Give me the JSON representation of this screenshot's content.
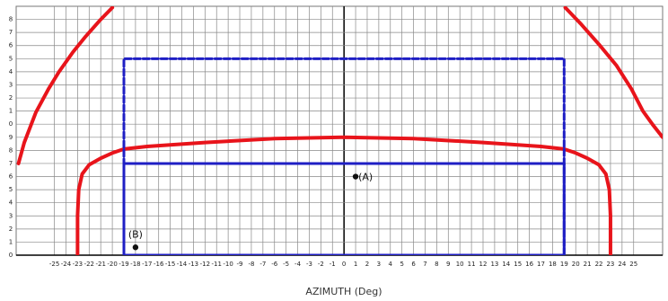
{
  "chart_data": {
    "type": "line",
    "x_label": "AZIMUTH (Deg)",
    "xlim": [
      -28.3,
      27.5
    ],
    "ylim": [
      0,
      19
    ],
    "xticks": [
      -25,
      -24,
      -23,
      -22,
      -21,
      -20,
      -19,
      -18,
      -17,
      -16,
      -15,
      -14,
      -13,
      -12,
      -11,
      -10,
      -9,
      -8,
      -7,
      -6,
      -5,
      -4,
      -3,
      -2,
      -1,
      0,
      1,
      2,
      3,
      4,
      5,
      6,
      7,
      8,
      9,
      10,
      11,
      12,
      13,
      14,
      15,
      16,
      17,
      18,
      19,
      20,
      21,
      22,
      23,
      24,
      25
    ],
    "yticks": [
      0,
      1,
      2,
      3,
      4,
      5,
      6,
      7,
      8,
      9,
      {
        "value": 10,
        "label": "0"
      },
      {
        "value": 11,
        "label": "1"
      },
      {
        "value": 12,
        "label": "2"
      },
      {
        "value": 13,
        "label": "3"
      },
      {
        "value": 14,
        "label": "4"
      },
      {
        "value": 15,
        "label": "5"
      },
      {
        "value": 16,
        "label": "6"
      },
      {
        "value": 17,
        "label": "7"
      },
      {
        "value": 18,
        "label": "8"
      }
    ],
    "grid": true,
    "series": [
      {
        "color": "#e8141b",
        "width": 4,
        "x": [
          -23,
          -23,
          -22.9,
          -22.6,
          -22,
          -21,
          -20,
          -19,
          -17,
          -12,
          -6,
          0,
          6,
          12,
          17,
          19,
          20,
          21,
          22,
          22.6,
          22.9,
          23,
          23
        ],
        "values": [
          0,
          3,
          5,
          6.2,
          6.9,
          7.4,
          7.8,
          8.1,
          8.3,
          8.6,
          8.9,
          9,
          8.9,
          8.6,
          8.3,
          8.1,
          7.8,
          7.4,
          6.9,
          6.2,
          5,
          3,
          0
        ]
      },
      {
        "color": "#e8141b",
        "width": 4,
        "x": [
          -28.1,
          -27.6,
          -26.6,
          -25.5,
          -24.6,
          -23.4,
          -22.3,
          -21.1,
          -20
        ],
        "values": [
          7,
          8.6,
          10.9,
          12.7,
          14,
          15.5,
          16.7,
          17.9,
          18.9
        ]
      },
      {
        "color": "#e8141b",
        "width": 4,
        "x": [
          19.1,
          20.5,
          22,
          23.5,
          24.8,
          25.8,
          26.7,
          27.5
        ],
        "values": [
          18.9,
          17.6,
          16.1,
          14.5,
          12.7,
          11,
          9.9,
          9
        ]
      },
      {
        "color": "#1f1fc4",
        "width": 3,
        "dash": true,
        "x": [
          -19,
          -19,
          19,
          19,
          -19
        ],
        "values": [
          0,
          15,
          15,
          0,
          0
        ]
      },
      {
        "color": "#1f1fc4",
        "width": 3,
        "x": [
          -19,
          -19,
          19,
          19,
          -19
        ],
        "values": [
          0,
          7,
          7,
          0,
          0
        ]
      }
    ],
    "points": [
      {
        "label": "(A)",
        "x": 1,
        "y": 6
      },
      {
        "label": "(B)",
        "x": -18,
        "y": 0.6
      }
    ]
  }
}
